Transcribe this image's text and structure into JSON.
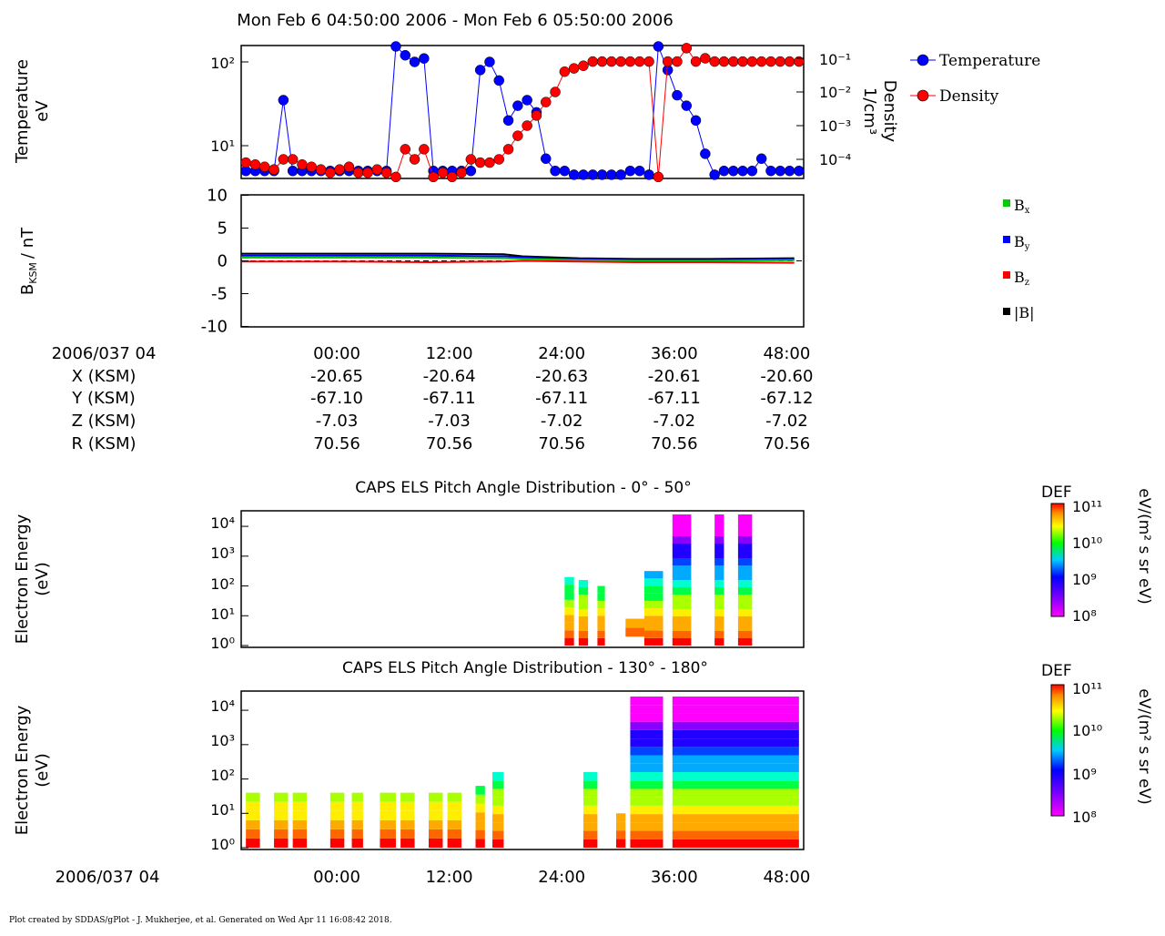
{
  "title": "Mon Feb 6 04:50:00 2006 - Mon Feb 6 05:50:00 2006",
  "footer": "Plot created by SDDAS/gPlot - J. Mukherjee, et al.  Generated on Wed Apr 11 16:08:42 2018.",
  "colors": {
    "temperature": "#0000ff",
    "density": "#ff0000",
    "bx": "#00cc00",
    "by": "#0000ff",
    "bz": "#ff0000",
    "bmag": "#000000"
  },
  "chart_data": [
    {
      "type": "line",
      "name": "moments",
      "ylabel": "Temperature",
      "ylabel_unit": "eV",
      "y2label": "Density",
      "y2label_unit": "1/cm³",
      "y_scale": "log",
      "y_ticks": [
        "10²",
        "10¹"
      ],
      "y2_ticks": [
        "10⁻¹",
        "10⁻²",
        "10⁻³",
        "10⁻⁴"
      ],
      "legend": [
        "Temperature",
        "Density"
      ],
      "legend_placement": "right",
      "series": [
        {
          "name": "Temperature",
          "color": "#0000ff",
          "x": [
            0,
            1,
            2,
            3,
            4,
            5,
            6,
            7,
            8,
            9,
            10,
            11,
            12,
            13,
            14,
            15,
            16,
            17,
            18,
            19,
            20,
            21,
            22,
            23,
            24,
            25,
            26,
            27,
            28,
            29,
            30,
            31,
            32,
            33,
            34,
            35,
            36,
            37,
            38,
            39,
            40,
            41,
            42,
            43,
            44,
            45,
            46,
            47,
            48,
            49,
            50,
            51,
            52,
            53,
            54,
            55,
            56,
            57,
            58,
            59
          ],
          "y": [
            5,
            5,
            5,
            5,
            35,
            5,
            5,
            5,
            5,
            5,
            5,
            5,
            5,
            5,
            5,
            5,
            160,
            120,
            100,
            110,
            5,
            5,
            5,
            5,
            5,
            80,
            100,
            60,
            20,
            30,
            35,
            25,
            7,
            5,
            5,
            4.5,
            4.5,
            4.5,
            4.5,
            4.5,
            4.5,
            5,
            5,
            4.5,
            160,
            80,
            40,
            30,
            20,
            8,
            4.5,
            5,
            5,
            5,
            5,
            7,
            5,
            5,
            5,
            5
          ]
        },
        {
          "name": "Density",
          "color": "#ff0000",
          "x": [
            0,
            1,
            2,
            3,
            4,
            5,
            6,
            7,
            8,
            9,
            10,
            11,
            12,
            13,
            14,
            15,
            16,
            17,
            18,
            19,
            20,
            21,
            22,
            23,
            24,
            25,
            26,
            27,
            28,
            29,
            30,
            31,
            32,
            33,
            34,
            35,
            36,
            37,
            38,
            39,
            40,
            41,
            42,
            43,
            44,
            45,
            46,
            47,
            48,
            49,
            50,
            51,
            52,
            53,
            54,
            55,
            56,
            57,
            58,
            59
          ],
          "y": [
            8e-05,
            7e-05,
            6e-05,
            5e-05,
            0.0001,
            0.0001,
            7e-05,
            6e-05,
            5e-05,
            4e-05,
            5e-05,
            6e-05,
            4e-05,
            4e-05,
            5e-05,
            4e-05,
            3e-05,
            0.0002,
            0.0001,
            0.0002,
            3e-05,
            4e-05,
            3e-05,
            4e-05,
            0.0001,
            8e-05,
            8e-05,
            0.0001,
            0.0002,
            0.0005,
            0.001,
            0.002,
            0.005,
            0.01,
            0.04,
            0.05,
            0.06,
            0.08,
            0.08,
            0.08,
            0.08,
            0.08,
            0.08,
            0.08,
            3e-05,
            0.08,
            0.08,
            0.2,
            0.08,
            0.1,
            0.08,
            0.08,
            0.08,
            0.08,
            0.08,
            0.08,
            0.08,
            0.08,
            0.08,
            0.08
          ]
        }
      ]
    },
    {
      "type": "line",
      "name": "magnetic-field",
      "ylabel": "B",
      "ylabel_sub": "KSM",
      "ylabel_unit": "/ nT",
      "ylim": [
        -10,
        10
      ],
      "y_ticks": [
        10,
        5,
        0,
        -5,
        -10
      ],
      "legend": [
        "Bx",
        "By",
        "Bz",
        "|B|"
      ],
      "legend_placement": "right",
      "x": [
        0,
        10,
        20,
        28,
        30,
        36,
        42,
        50,
        59
      ],
      "series": [
        {
          "name": "|B|",
          "color": "#000000",
          "values": [
            1.1,
            1.1,
            1.1,
            1.0,
            0.7,
            0.4,
            0.3,
            0.3,
            0.4
          ]
        },
        {
          "name": "By",
          "color": "#0000ff",
          "values": [
            0.8,
            0.8,
            0.8,
            0.7,
            0.5,
            0.2,
            0.1,
            0.1,
            0.2
          ]
        },
        {
          "name": "Bx",
          "color": "#00cc00",
          "values": [
            0.5,
            0.5,
            0.5,
            0.4,
            0.3,
            0.1,
            0.0,
            0.0,
            0.1
          ]
        },
        {
          "name": "Bz",
          "color": "#ff0000",
          "values": [
            -0.1,
            -0.1,
            -0.2,
            -0.1,
            0.0,
            -0.1,
            -0.2,
            -0.2,
            -0.3
          ]
        }
      ]
    },
    {
      "type": "heatmap",
      "name": "pad-0-50",
      "title": "CAPS ELS Pitch Angle Distribution - 0° - 50°",
      "ylabel": "Electron Energy",
      "ylabel_unit": "(eV)",
      "y_ticks": [
        "10⁴",
        "10³",
        "10²",
        "10¹",
        "10⁰"
      ],
      "colorbar_label": "DEF",
      "colorbar_unit": "eV/(m² s sr eV)",
      "colorbar_ticks": [
        "10¹¹",
        "10¹⁰",
        "10⁹",
        "10⁸"
      ],
      "blocks": [
        {
          "x0": 34.5,
          "x1": 35.5,
          "y0": 0,
          "y1": 2.3
        },
        {
          "x0": 36.0,
          "x1": 37.0,
          "y0": 0,
          "y1": 2.2
        },
        {
          "x0": 38.0,
          "x1": 38.8,
          "y0": 0,
          "y1": 2.0
        },
        {
          "x0": 41.0,
          "x1": 44.5,
          "y0": 0.3,
          "y1": 0.9
        },
        {
          "x0": 43.0,
          "x1": 45.0,
          "y0": 0,
          "y1": 2.5
        },
        {
          "x0": 46.0,
          "x1": 48.0,
          "y0": 0,
          "y1": 4.4
        },
        {
          "x0": 50.5,
          "x1": 51.5,
          "y0": 0,
          "y1": 4.4
        },
        {
          "x0": 53.0,
          "x1": 54.5,
          "y0": 0,
          "y1": 4.4
        }
      ]
    },
    {
      "type": "heatmap",
      "name": "pad-130-180",
      "title": "CAPS ELS Pitch Angle Distribution - 130° - 180°",
      "ylabel": "Electron Energy",
      "ylabel_unit": "(eV)",
      "y_ticks": [
        "10⁴",
        "10³",
        "10²",
        "10¹",
        "10⁰"
      ],
      "colorbar_label": "DEF",
      "colorbar_unit": "eV/(m² s sr eV)",
      "colorbar_ticks": [
        "10¹¹",
        "10¹⁰",
        "10⁹",
        "10⁸"
      ],
      "blocks": [
        {
          "x0": 0.5,
          "x1": 2.0,
          "y0": 0,
          "y1": 1.6
        },
        {
          "x0": 3.5,
          "x1": 5.0,
          "y0": 0,
          "y1": 1.6
        },
        {
          "x0": 5.5,
          "x1": 7.0,
          "y0": 0,
          "y1": 1.6
        },
        {
          "x0": 9.5,
          "x1": 11.0,
          "y0": 0,
          "y1": 1.6
        },
        {
          "x0": 11.8,
          "x1": 13.0,
          "y0": 0,
          "y1": 1.6
        },
        {
          "x0": 14.8,
          "x1": 16.5,
          "y0": 0,
          "y1": 1.6
        },
        {
          "x0": 17.0,
          "x1": 18.5,
          "y0": 0,
          "y1": 1.6
        },
        {
          "x0": 20.0,
          "x1": 21.5,
          "y0": 0,
          "y1": 1.6
        },
        {
          "x0": 22.0,
          "x1": 23.5,
          "y0": 0,
          "y1": 1.6
        },
        {
          "x0": 25.0,
          "x1": 26.0,
          "y0": 0,
          "y1": 1.8
        },
        {
          "x0": 26.8,
          "x1": 28.0,
          "y0": 0,
          "y1": 2.2
        },
        {
          "x0": 36.5,
          "x1": 38.0,
          "y0": 0,
          "y1": 2.2
        },
        {
          "x0": 40.0,
          "x1": 41.0,
          "y0": 0,
          "y1": 1.0
        },
        {
          "x0": 41.5,
          "x1": 45.0,
          "y0": 0,
          "y1": 4.4
        },
        {
          "x0": 46.0,
          "x1": 59.5,
          "y0": 0,
          "y1": 4.4
        }
      ]
    }
  ],
  "ephemeris": {
    "header": "2006/037 04",
    "rows": [
      {
        "label": "X (KSM)",
        "values": [
          "-20.65",
          "-20.64",
          "-20.63",
          "-20.61",
          "-20.60"
        ]
      },
      {
        "label": "Y (KSM)",
        "values": [
          "-67.10",
          "-67.11",
          "-67.11",
          "-67.11",
          "-67.12"
        ]
      },
      {
        "label": "Z (KSM)",
        "values": [
          "-7.03",
          "-7.03",
          "-7.02",
          "-7.02",
          "-7.02"
        ]
      },
      {
        "label": "R (KSM)",
        "values": [
          "70.56",
          "70.56",
          "70.56",
          "70.56",
          "70.56"
        ]
      }
    ]
  },
  "time_axis": {
    "ticks": [
      {
        "t": 10,
        "label": "00:00"
      },
      {
        "t": 22,
        "label": "12:00"
      },
      {
        "t": 34,
        "label": "24:00"
      },
      {
        "t": 46,
        "label": "36:00"
      },
      {
        "t": 58,
        "label": "48:00"
      }
    ],
    "range": [
      0,
      60
    ],
    "bottom_label": "2006/037 04"
  }
}
